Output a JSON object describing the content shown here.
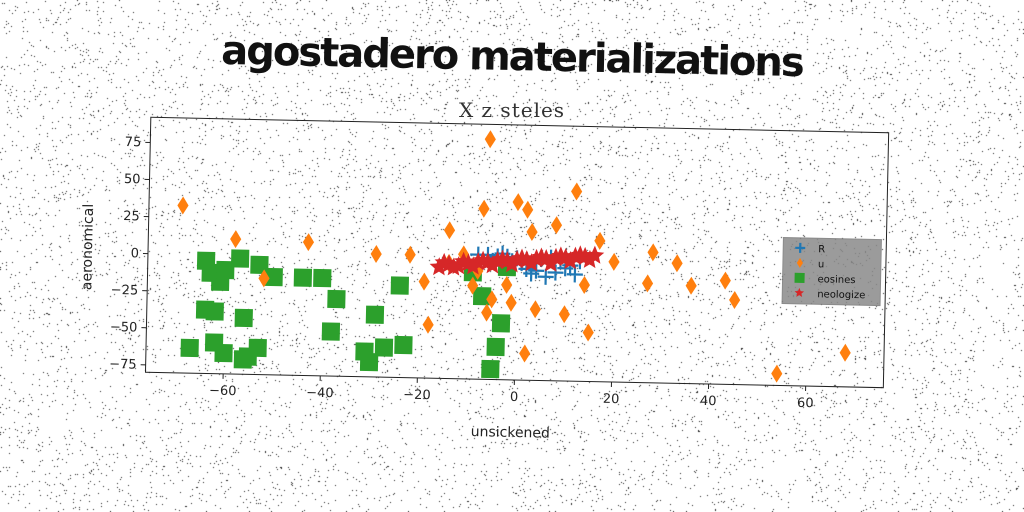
{
  "banner": {
    "title": "agostadero materializations"
  },
  "chart_data": {
    "type": "scatter",
    "title": "X z steles",
    "xlabel": "unsickened",
    "ylabel": "aeronomical",
    "xlim": [
      -76,
      76
    ],
    "ylim": [
      -80,
      92
    ],
    "xticks": [
      -60,
      -40,
      -20,
      0,
      20,
      40,
      60
    ],
    "yticks": [
      75,
      50,
      25,
      0,
      -25,
      -50,
      -75
    ],
    "xtick_labels": [
      "−60",
      "−40",
      "−20",
      "0",
      "20",
      "40",
      "60"
    ],
    "ytick_labels": [
      "75",
      "50",
      "25",
      "0",
      "−25",
      "−50",
      "−75"
    ],
    "grid": false,
    "legend_position": "center-right",
    "series": [
      {
        "name": "R",
        "marker": "plus",
        "color": "#1f77b4",
        "points": [
          [
            -8,
            4
          ],
          [
            -6,
            4
          ],
          [
            -4,
            3
          ],
          [
            -3,
            1
          ],
          [
            -1,
            0
          ],
          [
            0,
            2
          ],
          [
            1,
            -1
          ],
          [
            2,
            -5
          ],
          [
            3,
            -8
          ],
          [
            4,
            -6
          ],
          [
            6,
            -10
          ],
          [
            8,
            -7
          ],
          [
            10,
            -4
          ],
          [
            12,
            -8
          ],
          [
            13,
            1
          ],
          [
            -2,
            3
          ],
          [
            5,
            2
          ],
          [
            9,
            1
          ],
          [
            -5,
            0
          ],
          [
            7,
            3
          ],
          [
            11,
            -2
          ],
          [
            2,
            1
          ],
          [
            -3,
            5
          ]
        ]
      },
      {
        "name": "u",
        "marker": "diamond",
        "color": "#ff7f0e",
        "points": [
          [
            -69,
            33
          ],
          [
            -58,
            11
          ],
          [
            -52,
            -15
          ],
          [
            -43,
            10
          ],
          [
            -29,
            3
          ],
          [
            -22,
            3
          ],
          [
            -19,
            -15
          ],
          [
            -18,
            -44
          ],
          [
            -14,
            20
          ],
          [
            -14,
            -2
          ],
          [
            -11,
            4
          ],
          [
            -9,
            -17
          ],
          [
            -6,
            -35
          ],
          [
            -5,
            -26
          ],
          [
            -8,
            -7
          ],
          [
            -7,
            35
          ],
          [
            -6,
            82
          ],
          [
            -2,
            -16
          ],
          [
            -1,
            -28
          ],
          [
            0,
            40
          ],
          [
            2,
            35
          ],
          [
            3,
            20
          ],
          [
            4,
            -32
          ],
          [
            2,
            -62
          ],
          [
            8,
            25
          ],
          [
            10,
            -35
          ],
          [
            12,
            48
          ],
          [
            14,
            -15
          ],
          [
            15,
            -47
          ],
          [
            17,
            15
          ],
          [
            20,
            1
          ],
          [
            28,
            8
          ],
          [
            33,
            1
          ],
          [
            36,
            -14
          ],
          [
            43,
            -10
          ],
          [
            45,
            -23
          ],
          [
            54,
            -72
          ],
          [
            68,
            -57
          ],
          [
            27,
            -13
          ]
        ]
      },
      {
        "name": "eosines",
        "marker": "square",
        "color": "#2ca02c",
        "points": [
          [
            -64,
            -4
          ],
          [
            -63,
            -12
          ],
          [
            -61,
            -18
          ],
          [
            -60,
            -10
          ],
          [
            -57,
            -2
          ],
          [
            -53,
            -6
          ],
          [
            -50,
            -14
          ],
          [
            -62,
            -38
          ],
          [
            -64,
            -37
          ],
          [
            -67,
            -63
          ],
          [
            -62,
            -59
          ],
          [
            -60,
            -66
          ],
          [
            -56,
            -70
          ],
          [
            -53,
            -62
          ],
          [
            -55,
            -68
          ],
          [
            -56,
            -42
          ],
          [
            -44,
            -14
          ],
          [
            -40,
            -14
          ],
          [
            -37,
            -28
          ],
          [
            -38,
            -50
          ],
          [
            -29,
            -38
          ],
          [
            -31,
            -63
          ],
          [
            -30,
            -70
          ],
          [
            -27,
            -60
          ],
          [
            -23,
            -58
          ],
          [
            -24,
            -18
          ],
          [
            -9,
            -8
          ],
          [
            -7,
            -24
          ],
          [
            -3,
            -42
          ],
          [
            -4,
            -58
          ],
          [
            -5,
            -73
          ],
          [
            -2,
            -4
          ]
        ]
      },
      {
        "name": "neologize",
        "marker": "star",
        "color": "#d62728",
        "points": [
          [
            -16,
            -5
          ],
          [
            -14,
            -3
          ],
          [
            -12,
            -4
          ],
          [
            -10,
            -2
          ],
          [
            -8,
            -1
          ],
          [
            -6,
            -1
          ],
          [
            -4,
            0
          ],
          [
            -2,
            0
          ],
          [
            0,
            1
          ],
          [
            2,
            1
          ],
          [
            4,
            2
          ],
          [
            6,
            2
          ],
          [
            8,
            3
          ],
          [
            10,
            3
          ],
          [
            12,
            4
          ],
          [
            14,
            4
          ],
          [
            16,
            5
          ],
          [
            -15,
            -2
          ],
          [
            -11,
            -1
          ],
          [
            -7,
            0
          ],
          [
            -3,
            1
          ],
          [
            1,
            2
          ],
          [
            5,
            3
          ],
          [
            9,
            4
          ],
          [
            13,
            5
          ],
          [
            15,
            2
          ],
          [
            11,
            1
          ],
          [
            7,
            -1
          ],
          [
            3,
            -1
          ],
          [
            -1,
            -2
          ],
          [
            -5,
            -3
          ],
          [
            -9,
            -4
          ],
          [
            -13,
            -5
          ]
        ]
      }
    ]
  }
}
